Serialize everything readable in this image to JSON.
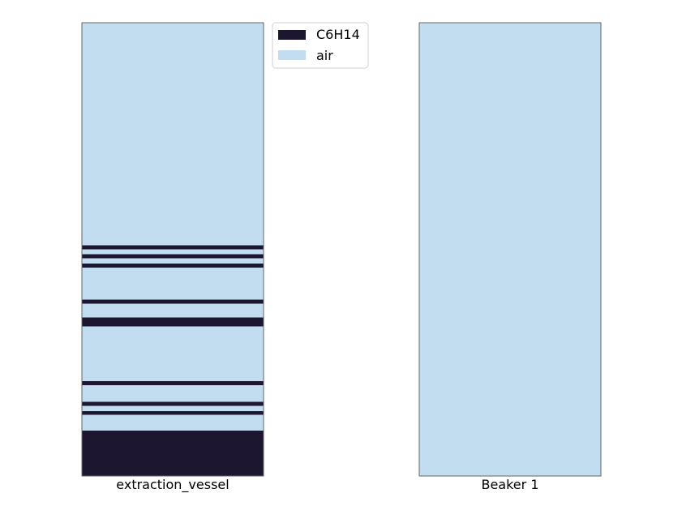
{
  "chart_data": {
    "type": "bar",
    "categories": [
      "extraction_vessel",
      "Beaker 1"
    ],
    "colors": {
      "C6H14": "#1c1630",
      "air": "#c3ddf0"
    },
    "legend": {
      "placement": "top-center",
      "entries": [
        "C6H14",
        "air"
      ]
    },
    "ylim": [
      0,
      1
    ],
    "grid": false,
    "vessels": [
      {
        "name": "extraction_vessel",
        "layers": [
          {
            "component": "C6H14",
            "from": 0.0,
            "to": 0.1
          },
          {
            "component": "air",
            "from": 0.1,
            "to": 0.135
          },
          {
            "component": "C6H14",
            "from": 0.135,
            "to": 0.143
          },
          {
            "component": "air",
            "from": 0.143,
            "to": 0.155
          },
          {
            "component": "C6H14",
            "from": 0.155,
            "to": 0.164
          },
          {
            "component": "air",
            "from": 0.164,
            "to": 0.2
          },
          {
            "component": "C6H14",
            "from": 0.2,
            "to": 0.209
          },
          {
            "component": "air",
            "from": 0.209,
            "to": 0.33
          },
          {
            "component": "C6H14",
            "from": 0.33,
            "to": 0.35
          },
          {
            "component": "air",
            "from": 0.35,
            "to": 0.38
          },
          {
            "component": "C6H14",
            "from": 0.38,
            "to": 0.389
          },
          {
            "component": "air",
            "from": 0.389,
            "to": 0.46
          },
          {
            "component": "C6H14",
            "from": 0.46,
            "to": 0.469
          },
          {
            "component": "air",
            "from": 0.469,
            "to": 0.48
          },
          {
            "component": "C6H14",
            "from": 0.48,
            "to": 0.489
          },
          {
            "component": "air",
            "from": 0.489,
            "to": 0.5
          },
          {
            "component": "C6H14",
            "from": 0.5,
            "to": 0.509
          },
          {
            "component": "air",
            "from": 0.509,
            "to": 1.0
          }
        ]
      },
      {
        "name": "Beaker 1",
        "layers": [
          {
            "component": "air",
            "from": 0.0,
            "to": 1.0
          }
        ]
      }
    ]
  }
}
